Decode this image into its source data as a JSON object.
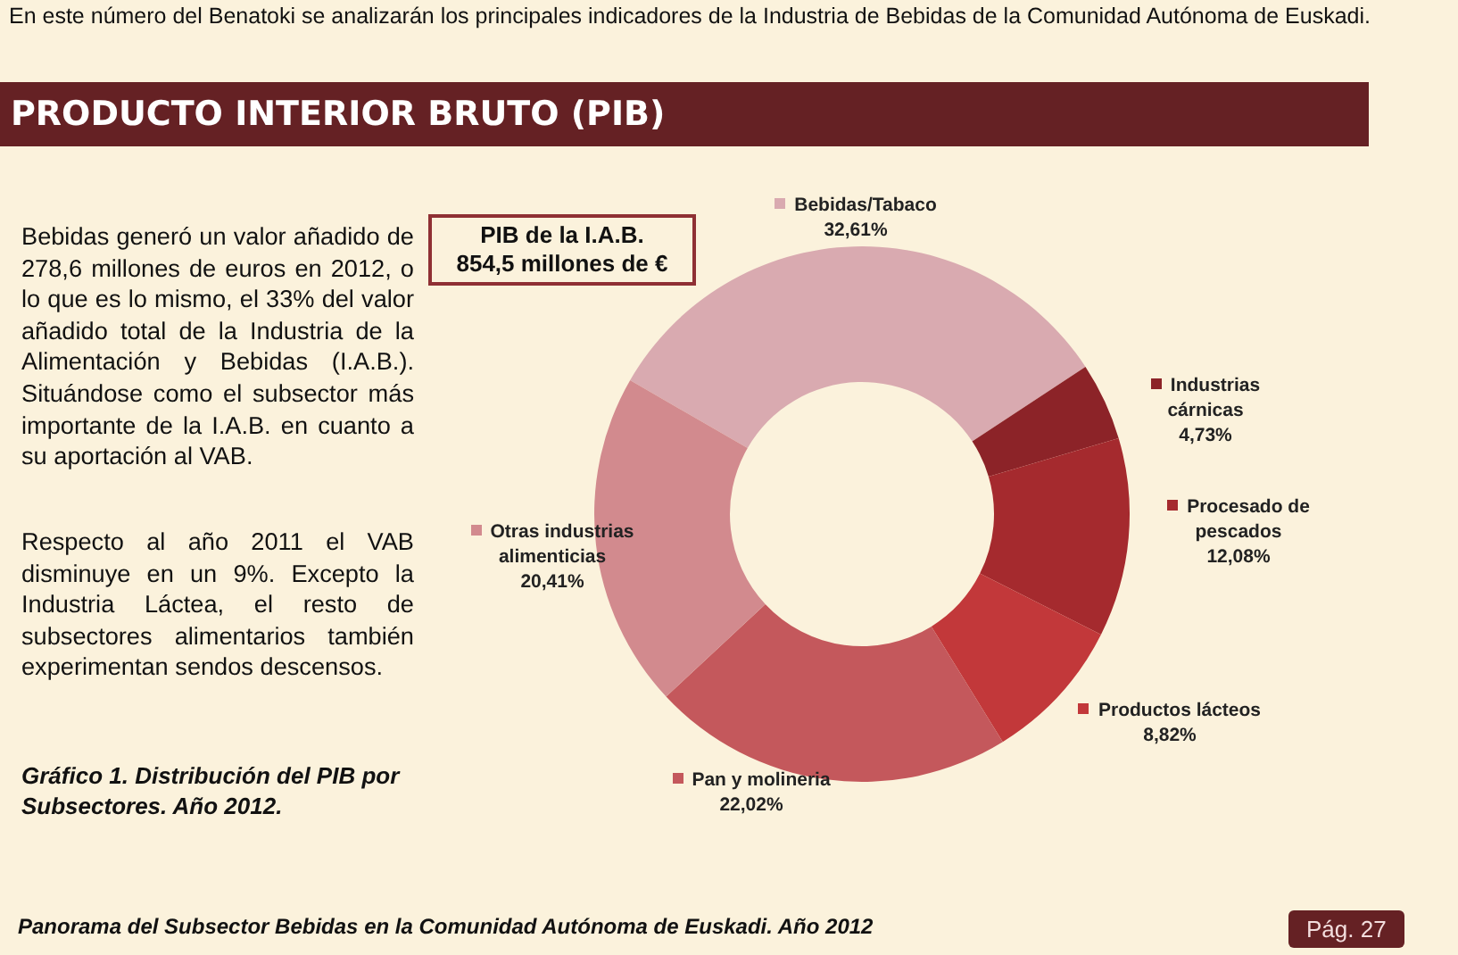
{
  "chart_data": {
    "type": "donut",
    "title": "PRODUCTO INTERIOR BRUTO (PIB)",
    "categories": [
      "Bebidas/Tabaco",
      "Industrias cárnicas",
      "Procesado de pescados",
      "Productos lácteos",
      "Pan y molineria",
      "Otras industrias alimenticias"
    ],
    "values": [
      32.61,
      4.73,
      12.08,
      8.82,
      22.02,
      20.41
    ],
    "colors": [
      "#d9aab0",
      "#8c2328",
      "#a52a2e",
      "#c2383a",
      "#c4585c",
      "#d28a8e"
    ],
    "value_labels": [
      "32,61%",
      "4,73%",
      "12,08%",
      "8,82%",
      "22,02%",
      "20,41%"
    ],
    "legend": "right",
    "annotations": [
      "En este número del Benatoki se analizarán los principales indicadores de la Industria de Bebidas de la Comunidad Autónoma de Euskadi.",
      "PIB de la I.A.B.\n854,5 millones de  €",
      "Bebidas generó un valor añadido de 278,6 millones de euros en 2012, o lo que es lo mismo, el 33% del valor añadido total de la Industria de la Alimentación y Bebidas (I.A.B.). Situándose como el subsector más importante de la I.A.B. en cuanto a su aportación al VAB.",
      "Respecto al año 2011 el VAB disminuye en un 9%. Excepto la Industria Láctea, el resto de subsectores alimentarios también experimentan sendos descensos.",
      "Gráfico 1. Distribución del PIB por Subsectores. Año 2012.",
      "Panorama del Subsector Bebidas en la Comunidad Autónoma de Euskadi. Año 2012",
      "Pág. 27"
    ]
  }
}
